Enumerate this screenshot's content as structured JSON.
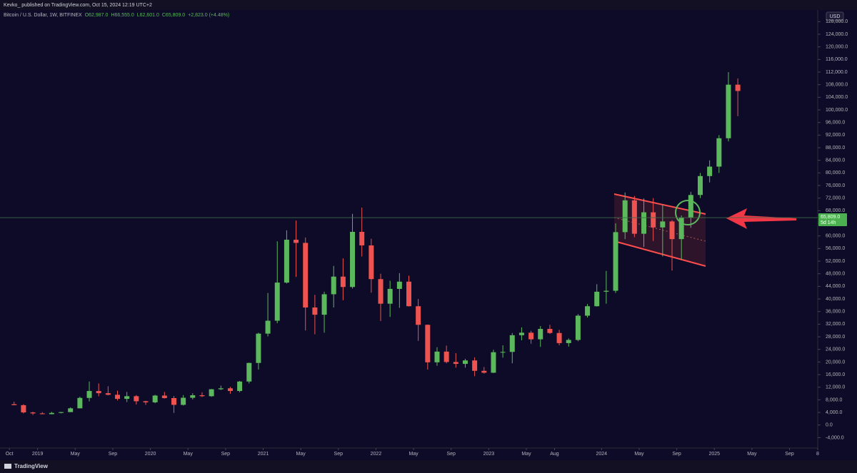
{
  "header": {
    "publisher": "Kevko_ published on TradingView.com, Oct 15, 2024 12:19 UTC+2",
    "symbol": "Bitcoin / U.S. Dollar, 1W, BITFINEX",
    "ohlc": [
      "O62,987.0",
      "H66,555.0",
      "L62,601.0",
      "C65,809.0",
      "+2,823.0 (+4.48%)"
    ],
    "currency": "USD"
  },
  "footer": {
    "brand": "TradingView"
  },
  "chart_data": {
    "type": "candlestick",
    "up_color": "#5cb85c",
    "down_color": "#ef5350",
    "x": [
      "2018-10",
      "2018-11",
      "2018-12",
      "2019-01",
      "2019-02",
      "2019-03",
      "2019-04",
      "2019-05",
      "2019-06",
      "2019-07",
      "2019-08",
      "2019-09",
      "2019-10",
      "2019-11",
      "2019-12",
      "2020-01",
      "2020-02",
      "2020-03",
      "2020-04",
      "2020-05",
      "2020-06",
      "2020-07",
      "2020-08",
      "2020-09",
      "2020-10",
      "2020-11",
      "2020-12",
      "2021-01",
      "2021-02",
      "2021-03",
      "2021-04",
      "2021-05",
      "2021-06",
      "2021-07",
      "2021-08",
      "2021-09",
      "2021-10",
      "2021-11",
      "2021-12",
      "2022-01",
      "2022-02",
      "2022-03",
      "2022-04",
      "2022-05",
      "2022-06",
      "2022-07",
      "2022-08",
      "2022-09",
      "2022-10",
      "2022-11",
      "2022-12",
      "2023-01",
      "2023-02",
      "2023-03",
      "2023-04",
      "2023-05",
      "2023-06",
      "2023-07",
      "2023-08",
      "2023-09",
      "2023-10",
      "2023-11",
      "2023-12",
      "2024-01",
      "2024-02",
      "2024-03",
      "2024-04",
      "2024-05",
      "2024-06",
      "2024-07",
      "2024-08",
      "2024-09",
      "2024-10",
      "2024-11",
      "2024-12",
      "2025-01",
      "2025-02",
      "2025-03"
    ],
    "open": [
      6600,
      6300,
      4000,
      3700,
      3450,
      3850,
      4100,
      5300,
      8600,
      10800,
      10100,
      9600,
      8300,
      9150,
      7550,
      7200,
      9350,
      8550,
      6400,
      8650,
      9450,
      9150,
      11350,
      11650,
      10800,
      13800,
      19700,
      29000,
      33100,
      45200,
      58800,
      57800,
      37300,
      35000,
      41500,
      47100,
      43800,
      61300,
      57000,
      46300,
      38500,
      43200,
      45500,
      37700,
      31800,
      19900,
      23300,
      20000,
      19400,
      20500,
      17200,
      16600,
      23100,
      23200,
      28500,
      29300,
      27200,
      30500,
      29200,
      26000,
      27000,
      34700,
      37700,
      42300,
      42600,
      61200,
      71300,
      60700,
      67500,
      62700,
      64600,
      59000,
      65800,
      73000,
      79000,
      82000,
      91000,
      108000
    ],
    "high": [
      7400,
      6600,
      4200,
      4100,
      4200,
      4150,
      5600,
      9000,
      13800,
      13200,
      12300,
      10900,
      10500,
      9500,
      7700,
      9600,
      10500,
      9200,
      9500,
      10100,
      10400,
      11450,
      12500,
      12100,
      14000,
      19800,
      29300,
      41900,
      58300,
      61800,
      64900,
      59500,
      41300,
      42300,
      50500,
      52900,
      67000,
      69000,
      59100,
      48000,
      45800,
      48200,
      47400,
      40000,
      31900,
      24700,
      25200,
      22800,
      21000,
      21500,
      18400,
      23900,
      25300,
      29200,
      31000,
      29900,
      31400,
      31800,
      30200,
      27500,
      35200,
      38400,
      44700,
      48900,
      64000,
      73800,
      72700,
      71900,
      72000,
      70000,
      65000,
      66500,
      74000,
      80000,
      84000,
      92000,
      112000,
      110000
    ],
    "low": [
      6300,
      3700,
      3200,
      3400,
      3400,
      3700,
      4100,
      5300,
      7500,
      9100,
      9400,
      7800,
      7300,
      6500,
      6400,
      6900,
      8400,
      3850,
      6200,
      8100,
      8900,
      8950,
      11100,
      9900,
      10400,
      13200,
      17600,
      28100,
      32300,
      44900,
      47000,
      30000,
      28800,
      29300,
      37300,
      39600,
      43300,
      53500,
      42000,
      33000,
      34300,
      37200,
      37600,
      26700,
      17600,
      18800,
      19600,
      18200,
      18200,
      15500,
      16300,
      16500,
      21400,
      19600,
      26900,
      25800,
      24800,
      28900,
      25300,
      24900,
      26600,
      34100,
      37600,
      38500,
      41900,
      59000,
      59600,
      56500,
      58400,
      53500,
      49000,
      52500,
      62600,
      72000,
      77000,
      80000,
      90000,
      98000
    ],
    "close": [
      6300,
      4000,
      3700,
      3450,
      3850,
      4100,
      5300,
      8600,
      10800,
      10100,
      9600,
      8300,
      9150,
      7550,
      7200,
      9350,
      8550,
      6400,
      8650,
      9450,
      9150,
      11350,
      11650,
      10800,
      13800,
      19700,
      29000,
      33100,
      45200,
      58800,
      57800,
      37300,
      35000,
      41500,
      47100,
      43800,
      61300,
      57000,
      46300,
      38500,
      43200,
      45500,
      37700,
      31800,
      19900,
      23300,
      20000,
      19400,
      20500,
      17200,
      16600,
      23100,
      23200,
      28500,
      29300,
      27200,
      30500,
      29200,
      26000,
      27000,
      34700,
      37700,
      42300,
      42600,
      61200,
      71300,
      60700,
      67500,
      62700,
      64600,
      59000,
      65800,
      73000,
      79000,
      82000,
      91000,
      108000,
      106000
    ],
    "xlim": [
      "2018-09",
      "2025-12"
    ],
    "xticks": [
      {
        "value": "2018-10",
        "label": "Oct"
      },
      {
        "value": "2019-01",
        "label": "2019"
      },
      {
        "value": "2019-05",
        "label": "May"
      },
      {
        "value": "2019-09",
        "label": "Sep"
      },
      {
        "value": "2020-01",
        "label": "2020"
      },
      {
        "value": "2020-05",
        "label": "May"
      },
      {
        "value": "2020-09",
        "label": "Sep"
      },
      {
        "value": "2021-01",
        "label": "2021"
      },
      {
        "value": "2021-05",
        "label": "May"
      },
      {
        "value": "2021-09",
        "label": "Sep"
      },
      {
        "value": "2022-01",
        "label": "2022"
      },
      {
        "value": "2022-05",
        "label": "May"
      },
      {
        "value": "2022-09",
        "label": "Sep"
      },
      {
        "value": "2023-01",
        "label": "2023"
      },
      {
        "value": "2023-05",
        "label": "May"
      },
      {
        "value": "2023-08",
        "label": "Aug"
      },
      {
        "value": "2024-01",
        "label": "2024"
      },
      {
        "value": "2024-05",
        "label": "May"
      },
      {
        "value": "2024-09",
        "label": "Sep"
      },
      {
        "value": "2025-01",
        "label": "2025"
      },
      {
        "value": "2025-05",
        "label": "May"
      },
      {
        "value": "2025-09",
        "label": "Sep"
      },
      {
        "value": "2025-12",
        "label": "8"
      }
    ],
    "ylim": [
      -7300,
      131700
    ],
    "yticks": [
      {
        "value": -4000,
        "label": "-4,000.0"
      },
      {
        "value": 0,
        "label": "0.0"
      },
      {
        "value": 4000,
        "label": "4,000.0"
      },
      {
        "value": 8000,
        "label": "8,000.0"
      },
      {
        "value": 12000,
        "label": "12,000.0"
      },
      {
        "value": 16000,
        "label": "16,000.0"
      },
      {
        "value": 20000,
        "label": "20,000.0"
      },
      {
        "value": 24000,
        "label": "24,000.0"
      },
      {
        "value": 28000,
        "label": "28,000.0"
      },
      {
        "value": 32000,
        "label": "32,000.0"
      },
      {
        "value": 36000,
        "label": "36,000.0"
      },
      {
        "value": 40000,
        "label": "40,000.0"
      },
      {
        "value": 44000,
        "label": "44,000.0"
      },
      {
        "value": 48000,
        "label": "48,000.0"
      },
      {
        "value": 52000,
        "label": "52,000.0"
      },
      {
        "value": 56000,
        "label": "56,000.0"
      },
      {
        "value": 60000,
        "label": "60,000.0"
      },
      {
        "value": 64000,
        "label": "64,000.0"
      },
      {
        "value": 68000,
        "label": "68,000.0"
      },
      {
        "value": 72000,
        "label": "72,000.0"
      },
      {
        "value": 76000,
        "label": "76,000.0"
      },
      {
        "value": 80000,
        "label": "80,000.0"
      },
      {
        "value": 84000,
        "label": "84,000.0"
      },
      {
        "value": 88000,
        "label": "88,000.0"
      },
      {
        "value": 92000,
        "label": "92,000.0"
      },
      {
        "value": 96000,
        "label": "96,000.0"
      },
      {
        "value": 100000,
        "label": "100,000.0"
      },
      {
        "value": 104000,
        "label": "104,000.0"
      },
      {
        "value": 108000,
        "label": "108,000.0"
      },
      {
        "value": 112000,
        "label": "112,000.0"
      },
      {
        "value": 116000,
        "label": "116,000.0"
      },
      {
        "value": 120000,
        "label": "120,000.0"
      },
      {
        "value": 124000,
        "label": "124,000.0"
      },
      {
        "value": 128000,
        "label": "128,000.0"
      }
    ],
    "last_price": {
      "value": 65809,
      "label": "65,809.0"
    },
    "countdown": "5d 14h",
    "grid": false
  }
}
